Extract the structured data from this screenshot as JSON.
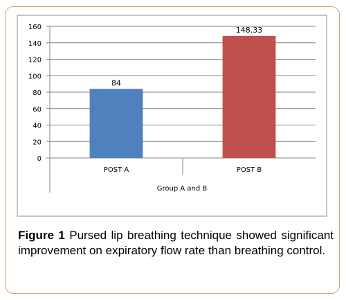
{
  "chart_data": {
    "type": "bar",
    "categories": [
      "POST A",
      "POST B"
    ],
    "values": [
      84,
      148.33
    ],
    "data_labels": [
      "84",
      "148.33"
    ],
    "colors": [
      "#4f81bd",
      "#c0504d"
    ],
    "xlabel": "Group A and B",
    "ylabel": "",
    "ylim": [
      0,
      160
    ],
    "yticks": [
      "0",
      "20",
      "40",
      "60",
      "80",
      "100",
      "120",
      "140",
      "160"
    ],
    "grid": true,
    "legend": "none"
  },
  "caption": {
    "label": "Figure 1",
    "text": " Pursed lip breathing technique showed significant improvement on expiratory flow rate than breathing control."
  }
}
